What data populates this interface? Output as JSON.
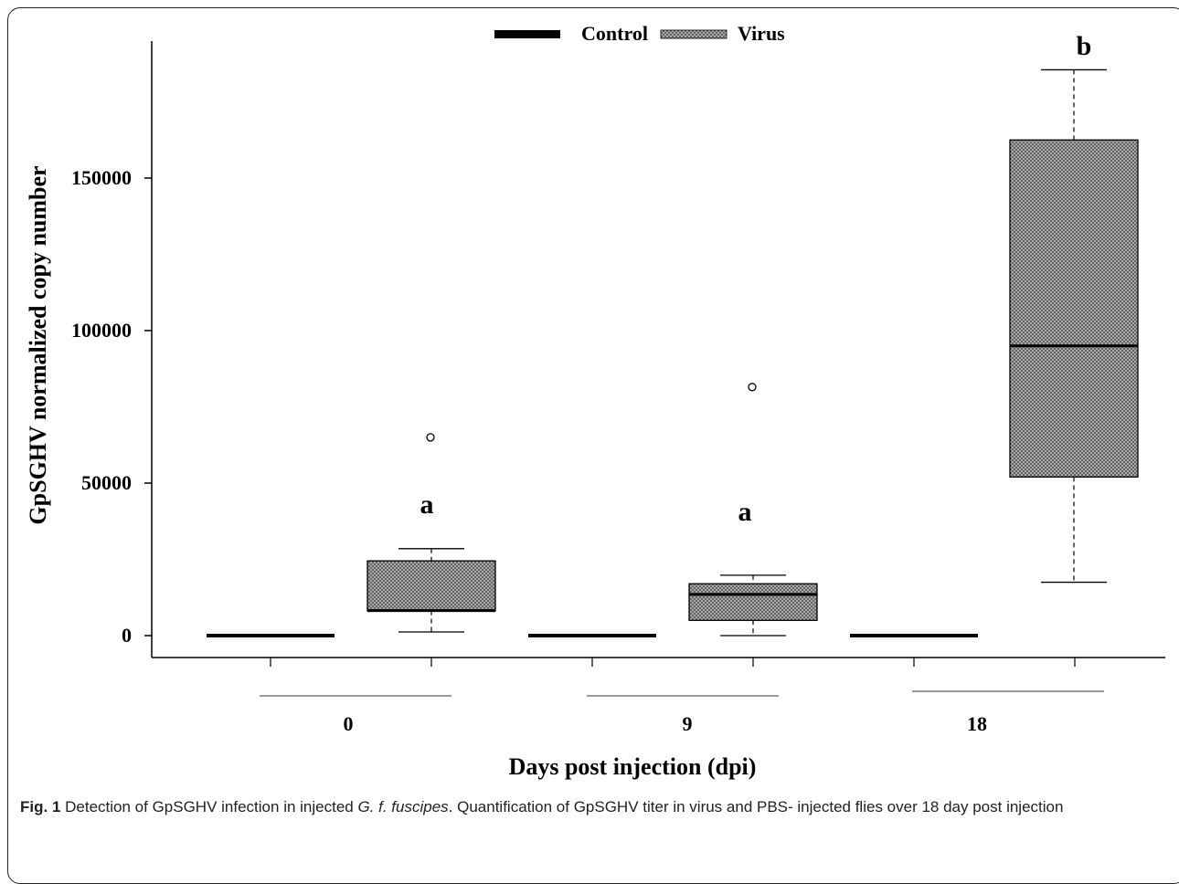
{
  "chart_data": {
    "type": "box",
    "xlabel": "Days post injection (dpi)",
    "ylabel": "GpSGHV normalized copy number",
    "yticks": [
      0,
      50000,
      100000,
      150000
    ],
    "ytick_labels": [
      "0",
      "50000",
      "100000",
      "150000"
    ],
    "ylim": [
      -7000,
      195000
    ],
    "categories": [
      "0",
      "9",
      "18"
    ],
    "legend": {
      "placement": "top-center",
      "entries": [
        {
          "name": "Control",
          "pattern": "solid-black"
        },
        {
          "name": "Virus",
          "pattern": "crosshatch-gray"
        }
      ]
    },
    "groups": [
      {
        "category": "0",
        "boxes": [
          {
            "series": "Control",
            "min": 0,
            "q1": 0,
            "median": 0,
            "q3": 0,
            "max": 0,
            "outliers": []
          },
          {
            "series": "Virus",
            "min": 1200,
            "q1": 8200,
            "median": 8200,
            "q3": 24500,
            "max": 28500,
            "outliers": [
              65000
            ],
            "label": "a"
          }
        ]
      },
      {
        "category": "9",
        "boxes": [
          {
            "series": "Control",
            "min": 0,
            "q1": 0,
            "median": 0,
            "q3": 0,
            "max": 0,
            "outliers": []
          },
          {
            "series": "Virus",
            "min": 0,
            "q1": 5000,
            "median": 13500,
            "q3": 17000,
            "max": 19800,
            "outliers": [
              81500
            ],
            "label": "a"
          }
        ]
      },
      {
        "category": "18",
        "boxes": [
          {
            "series": "Control",
            "min": 0,
            "q1": 0,
            "median": 0,
            "q3": 0,
            "max": 0,
            "outliers": []
          },
          {
            "series": "Virus",
            "min": 17500,
            "q1": 52000,
            "median": 95000,
            "q3": 162500,
            "max": 185500,
            "outliers": [],
            "label": "b"
          }
        ]
      }
    ],
    "colors": {
      "control": "#000000",
      "virus_fill": "#9a9a9a",
      "axis": "#000000"
    }
  },
  "caption": {
    "label": "Fig. 1",
    "text_before": " Detection of GpSGHV infection in injected ",
    "species": "G. f. fuscipes",
    "text_after": ". Quantification of GpSGHV titer in virus and PBS- injected flies over 18 day post injection"
  }
}
